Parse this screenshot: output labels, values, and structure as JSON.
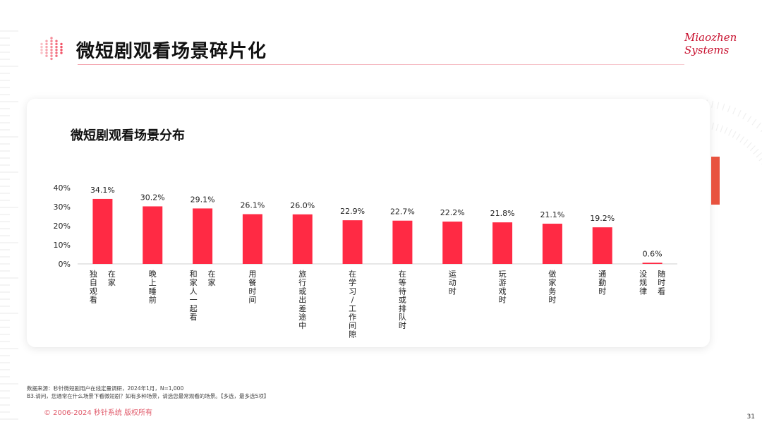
{
  "header": {
    "title": "微短剧观看场景碎片化"
  },
  "logo": {
    "line1": "Miaozhen",
    "line2": "Systems"
  },
  "chart_data": {
    "type": "bar",
    "title": "微短剧观看场景分布",
    "categories": [
      "在家 独自观看",
      "晚上睡前",
      "在家 和家人一起看",
      "用餐时间",
      "旅行或出差途中",
      "在学习/工作间隙",
      "在等待或排队时",
      "运动时",
      "玩游戏时",
      "做家务时",
      "通勤时",
      "随时看 没规律"
    ],
    "category_lines": [
      [
        "在家",
        "",
        "独自观看"
      ],
      [
        "晚上睡前"
      ],
      [
        "在家",
        "",
        "和家人一起看"
      ],
      [
        "用餐时间"
      ],
      [
        "旅行或出差途中"
      ],
      [
        "在学习/工作间隙"
      ],
      [
        "在等待或排队时"
      ],
      [
        "运动时"
      ],
      [
        "玩游戏时"
      ],
      [
        "做家务时"
      ],
      [
        "通勤时"
      ],
      [
        "随时看",
        "",
        "没规律"
      ]
    ],
    "values": [
      34.1,
      30.2,
      29.1,
      26.1,
      26.0,
      22.9,
      22.7,
      22.2,
      21.8,
      21.1,
      19.2,
      0.6
    ],
    "value_labels": [
      "34.1%",
      "30.2%",
      "29.1%",
      "26.1%",
      "26.0%",
      "22.9%",
      "22.7%",
      "22.2%",
      "21.8%",
      "21.1%",
      "19.2%",
      "0.6%"
    ],
    "yticks": [
      "0%",
      "10%",
      "20%",
      "30%",
      "40%"
    ],
    "ylim": [
      0,
      40
    ],
    "bar_color": "#ff2a44"
  },
  "footnotes": {
    "line1": "数据来源：秒针微短剧用户在线定量调研，2024年1月，N=1,000",
    "line2": "B3.请问，您通常在什么场景下看微短剧？如有多种场景，请选您最常观看的场景。【多选，最多选5项】"
  },
  "copyright": "© 2006-2024 秒针系统 版权所有",
  "page_number": "31"
}
